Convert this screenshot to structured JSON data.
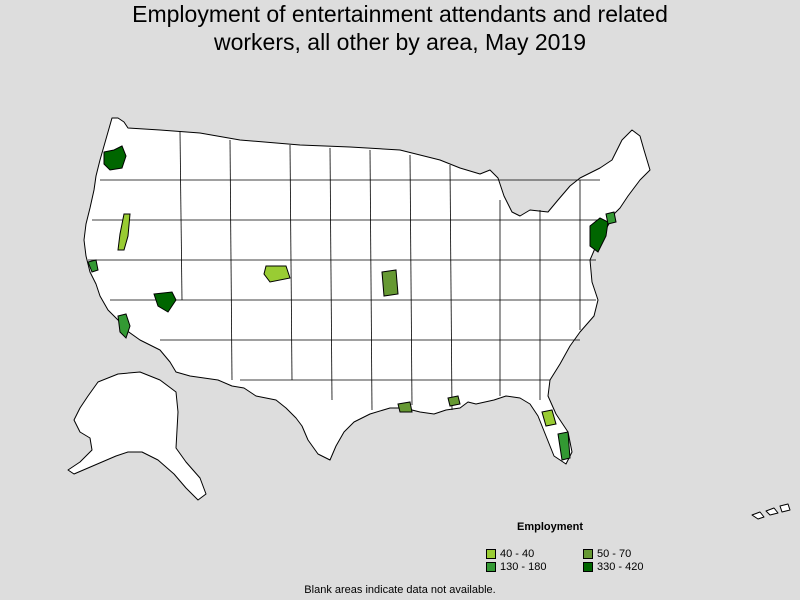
{
  "title": {
    "line1": "Employment of entertainment attendants and related",
    "line2": "workers, all other by area, May 2019"
  },
  "legend": {
    "title": "Employment",
    "items": [
      {
        "label": "40 - 40",
        "color": "#99cc33"
      },
      {
        "label": "50 - 70",
        "color": "#669933"
      },
      {
        "label": "130 - 180",
        "color": "#339933"
      },
      {
        "label": "330 - 420",
        "color": "#006600"
      }
    ]
  },
  "note": "Blank areas indicate data not available."
}
